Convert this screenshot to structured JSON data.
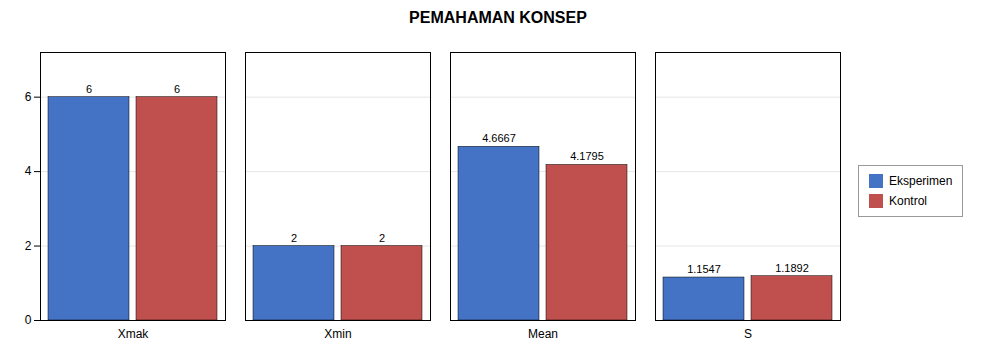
{
  "chart_data": {
    "type": "bar",
    "title": "PEMAHAMAN KONSEP",
    "categories": [
      "Xmak",
      "Xmin",
      "Mean",
      "S"
    ],
    "series": [
      {
        "name": "Eksperimen",
        "color": "#4472C4",
        "values": [
          6,
          2,
          4.6667,
          1.1547
        ]
      },
      {
        "name": "Kontrol",
        "color": "#C0504D",
        "values": [
          6,
          2,
          4.1795,
          1.1892
        ]
      }
    ],
    "ylim": [
      0,
      7.2
    ],
    "yticks": [
      0,
      2,
      4,
      6
    ],
    "grid": true,
    "legend": "right",
    "data_labels": true
  }
}
